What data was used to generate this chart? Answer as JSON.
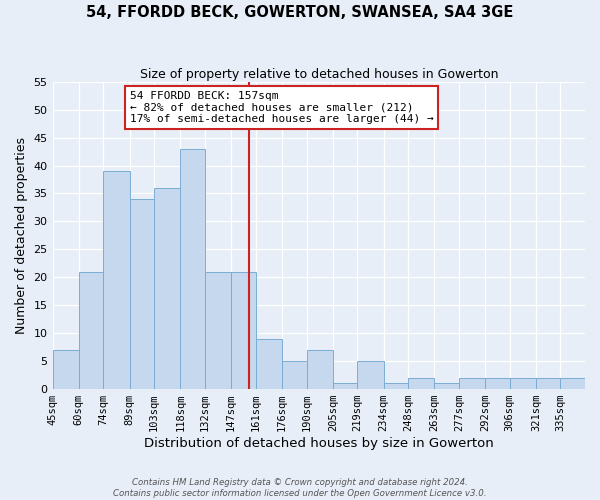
{
  "title": "54, FFORDD BECK, GOWERTON, SWANSEA, SA4 3GE",
  "subtitle": "Size of property relative to detached houses in Gowerton",
  "xlabel": "Distribution of detached houses by size in Gowerton",
  "ylabel": "Number of detached properties",
  "bin_labels": [
    "45sqm",
    "60sqm",
    "74sqm",
    "89sqm",
    "103sqm",
    "118sqm",
    "132sqm",
    "147sqm",
    "161sqm",
    "176sqm",
    "190sqm",
    "205sqm",
    "219sqm",
    "234sqm",
    "248sqm",
    "263sqm",
    "277sqm",
    "292sqm",
    "306sqm",
    "321sqm",
    "335sqm"
  ],
  "bin_edges": [
    45,
    60,
    74,
    89,
    103,
    118,
    132,
    147,
    161,
    176,
    190,
    205,
    219,
    234,
    248,
    263,
    277,
    292,
    306,
    321,
    335,
    349
  ],
  "counts": [
    7,
    21,
    39,
    34,
    36,
    43,
    21,
    21,
    9,
    5,
    7,
    1,
    5,
    1,
    2,
    1,
    2,
    2,
    2,
    2,
    2
  ],
  "bar_color": "#c5d8ee",
  "bar_edge_color": "#7aadd4",
  "property_value": 157,
  "vline_color": "#cc2222",
  "annotation_box_edge_color": "#cc2222",
  "annotation_title": "54 FFORDD BECK: 157sqm",
  "annotation_line1": "← 82% of detached houses are smaller (212)",
  "annotation_line2": "17% of semi-detached houses are larger (44) →",
  "ylim": [
    0,
    55
  ],
  "yticks": [
    0,
    5,
    10,
    15,
    20,
    25,
    30,
    35,
    40,
    45,
    50,
    55
  ],
  "footer1": "Contains HM Land Registry data © Crown copyright and database right 2024.",
  "footer2": "Contains public sector information licensed under the Open Government Licence v3.0.",
  "background_color": "#e8eef8",
  "plot_background_color": "#e8eef8"
}
